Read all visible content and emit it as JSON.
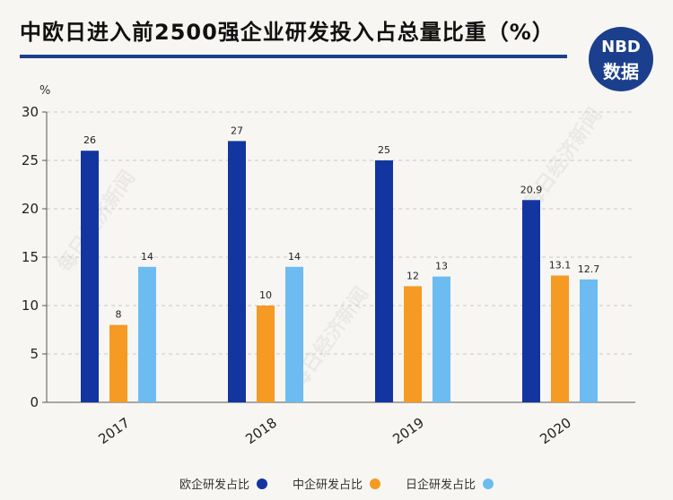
{
  "header": {
    "title": "中欧日进入前2500强企业研发投入占总量比重（%）"
  },
  "logo": {
    "top": "NBD",
    "bottom": "数据",
    "color": "#1b3f8c"
  },
  "watermark_text": "每日经济新闻",
  "chart_data": {
    "type": "bar",
    "title": "中欧日进入前2500强企业研发投入占总量比重（%）",
    "ylabel": "%",
    "xlabel": "",
    "ylim": [
      0,
      30
    ],
    "yticks": [
      0,
      5,
      10,
      15,
      20,
      25,
      30
    ],
    "grid": true,
    "legend_position": "bottom",
    "categories": [
      "2017",
      "2018",
      "2019",
      "2020"
    ],
    "series": [
      {
        "name": "欧企研发占比",
        "color": "#1235a0",
        "values": [
          26,
          27,
          25,
          20.9
        ],
        "labels": [
          "26",
          "27",
          "25",
          "20.9"
        ]
      },
      {
        "name": "中企研发占比",
        "color": "#f59a23",
        "values": [
          8,
          10,
          12,
          13.1
        ],
        "labels": [
          "8",
          "10",
          "12",
          "13.1"
        ]
      },
      {
        "name": "日企研发占比",
        "color": "#6cbcf2",
        "values": [
          14,
          14,
          13,
          12.7
        ],
        "labels": [
          "14",
          "14",
          "13",
          "12.7"
        ]
      }
    ]
  }
}
